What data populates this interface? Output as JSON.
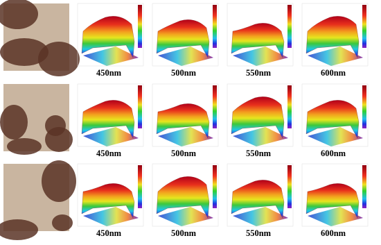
{
  "figure": {
    "rows": [
      {
        "labels": [
          "450nm",
          "500nm",
          "550nm",
          "600nm"
        ]
      },
      {
        "labels": [
          "450nm",
          "500nm",
          "550nm",
          "600nm"
        ]
      },
      {
        "labels": [
          "450nm",
          "500nm",
          "550nm",
          "600nm"
        ]
      }
    ]
  }
}
